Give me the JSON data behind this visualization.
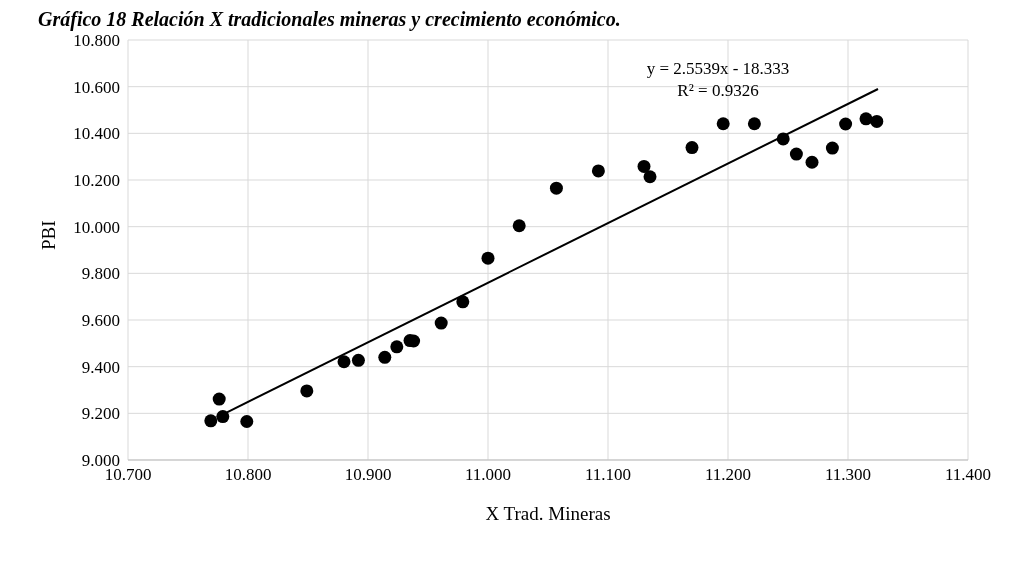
{
  "chart_data": {
    "type": "scatter",
    "title": "Gráfico 18 Relación X tradicionales mineras y crecimiento económico.",
    "xlabel": "X Trad. Mineras",
    "ylabel": "PBI",
    "series": [
      {
        "color": "#000000",
        "marker": "circle",
        "x": [
          10.769,
          10.776,
          10.779,
          10.799,
          10.849,
          10.88,
          10.892,
          10.914,
          10.924,
          10.935,
          10.938,
          10.961,
          10.979,
          11.0,
          11.026,
          11.057,
          11.092,
          11.13,
          11.135,
          11.17,
          11.196,
          11.222,
          11.246,
          11.257,
          11.27,
          11.287,
          11.298,
          11.315,
          11.324
        ],
        "values": [
          9.168,
          9.261,
          9.186,
          9.165,
          9.296,
          9.421,
          9.427,
          9.44,
          9.485,
          9.512,
          9.51,
          9.587,
          9.678,
          9.865,
          10.004,
          10.165,
          10.239,
          10.258,
          10.214,
          10.339,
          10.441,
          10.441,
          10.376,
          10.311,
          10.276,
          10.337,
          10.44,
          10.462,
          10.451
        ]
      },
      {
        "type": "line",
        "color": "#000000",
        "x": [
          10.78,
          11.325
        ],
        "values": [
          9.198,
          10.59
        ]
      }
    ],
    "annotations": [
      "y = 2.5539x - 18.333",
      "R² = 0.9326"
    ],
    "xlim": [
      10.7,
      11.4
    ],
    "xticks": [
      {
        "value": 10.7,
        "label": "10.700"
      },
      {
        "value": 10.8,
        "label": "10.800"
      },
      {
        "value": 10.9,
        "label": "10.900"
      },
      {
        "value": 11.0,
        "label": "11.000"
      },
      {
        "value": 11.1,
        "label": "11.100"
      },
      {
        "value": 11.2,
        "label": "11.200"
      },
      {
        "value": 11.3,
        "label": "11.300"
      },
      {
        "value": 11.4,
        "label": "11.400"
      }
    ],
    "ylim": [
      9.0,
      10.8
    ],
    "yticks": [
      {
        "value": 9.0,
        "label": "9.000"
      },
      {
        "value": 9.2,
        "label": "9.200"
      },
      {
        "value": 9.4,
        "label": "9.400"
      },
      {
        "value": 9.6,
        "label": "9.600"
      },
      {
        "value": 9.8,
        "label": "9.800"
      },
      {
        "value": 10.0,
        "label": "10.000"
      },
      {
        "value": 10.2,
        "label": "10.200"
      },
      {
        "value": 10.4,
        "label": "10.400"
      },
      {
        "value": 10.6,
        "label": "10.600"
      },
      {
        "value": 10.8,
        "label": "10.800"
      }
    ],
    "grid": true,
    "legend": false
  }
}
